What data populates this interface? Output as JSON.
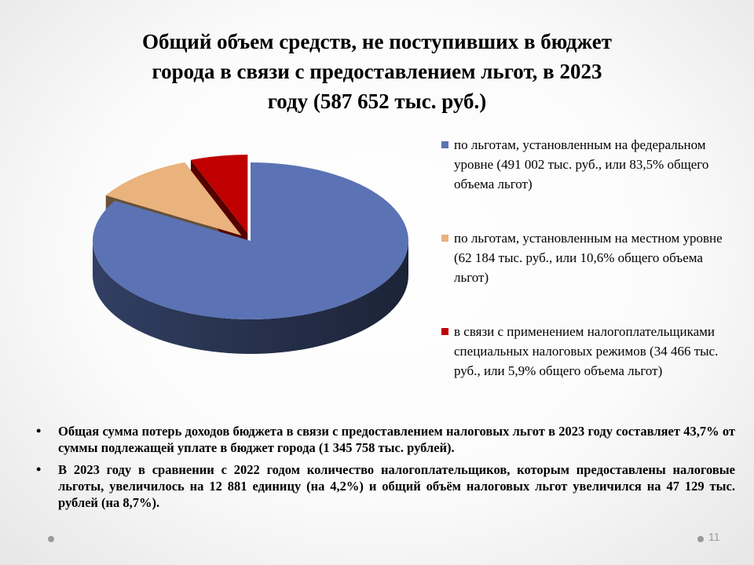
{
  "title_lines": [
    "Общий объем средств, не поступивших в бюджет",
    "города в связи с предоставлением льгот, в 2023",
    "году (587 652 тыс. руб.)"
  ],
  "chart_data": {
    "type": "pie",
    "title": "Общий объем средств, не поступивших в бюджет города в связи с предоставлением льгот, в 2023 году (587 652 тыс. руб.)",
    "unit": "тыс. руб.",
    "legend_position": "right",
    "slices": [
      {
        "value": 491002,
        "percent": 83.5,
        "color": "#5b73b4",
        "legend": "по льготам, установленным на федеральном уровне (491 002 тыс. руб., или 83,5% общего объема льгот)"
      },
      {
        "value": 62184,
        "percent": 10.6,
        "color": "#eab27c",
        "legend": "по льготам, установленным на местном уровне (62 184 тыс. руб., или 10,6% общего объема льгот)"
      },
      {
        "value": 34466,
        "percent": 5.9,
        "color": "#c00000",
        "legend": "в связи с применением налогоплательщиками специальных налоговых режимов (34 466 тыс. руб., или 5,9% общего объема льгот)"
      }
    ]
  },
  "bullets": [
    "Общая сумма потерь доходов бюджета в связи с предоставлением налоговых льгот в 2023 году составляет 43,7% от суммы подлежащей уплате в бюджет города (1 345 758 тыс. рублей).",
    "В 2023 году в сравнении с 2022 годом количество налогоплательщиков, которым предоставлены налоговые льготы, увеличилось на 12 881 единицу (на 4,2%) и общий объём налоговых льгот увеличился на 47 129 тыс. рублей (на 8,7%)."
  ],
  "bullet_symbol": "•",
  "page_number": "11"
}
